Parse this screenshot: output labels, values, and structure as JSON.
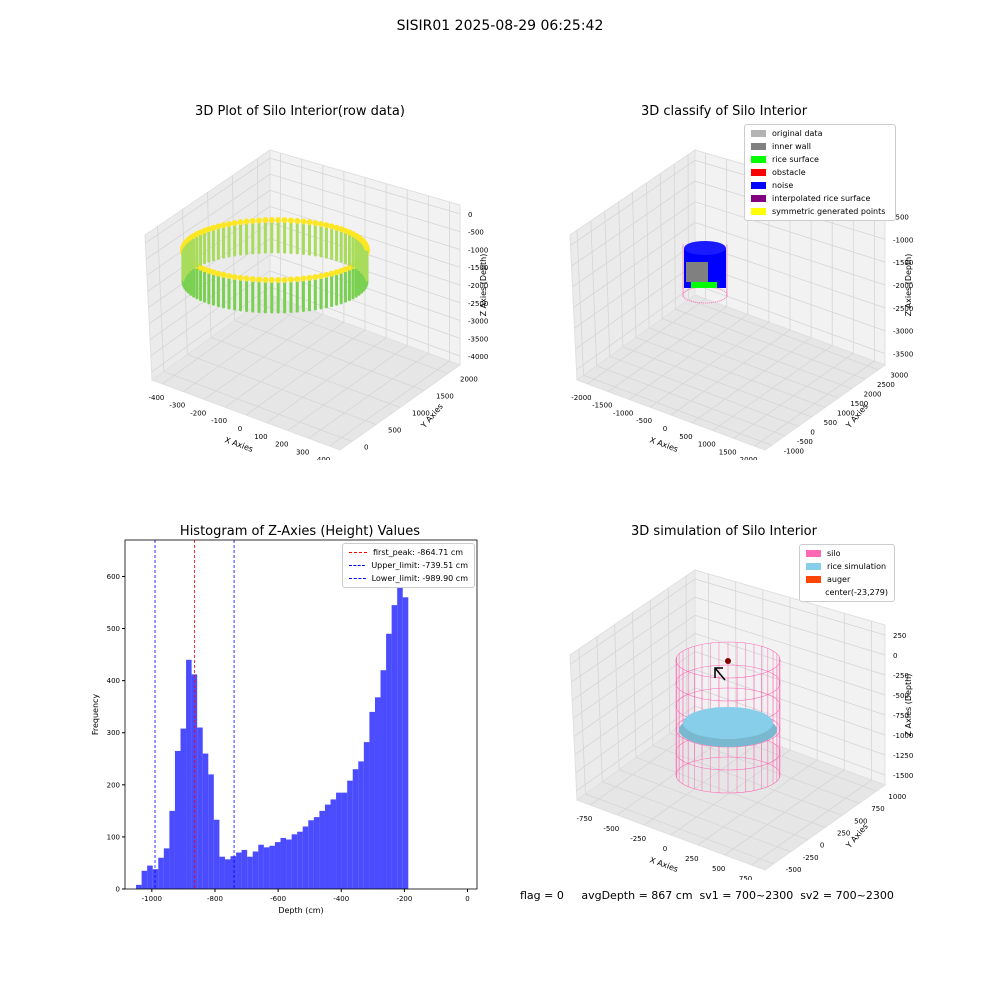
{
  "suptitle": "SISIR01 2025-08-29 06:25:42",
  "status_text": "flag = 0     avgDepth = 867 cm  sv1 = 700~2300  sv2 = 700~2300",
  "chart_data": [
    {
      "type": "scatter3d",
      "title": "3D Plot of Silo Interior(row data)",
      "xlabel": "X Axies",
      "ylabel": "Y Axies",
      "zlabel": "Z Axies (Depth)",
      "x_ticks": [
        "-400",
        "-300",
        "-200",
        "-100",
        "0",
        "100",
        "200",
        "300",
        "400"
      ],
      "y_ticks": [
        "0",
        "500",
        "1000",
        "1500",
        "2000"
      ],
      "z_ticks": [
        "0",
        "-500",
        "-1000",
        "-1500",
        "-2000",
        "-2500",
        "-3000",
        "-3500",
        "-4000"
      ],
      "colormap": [
        "#fde725",
        "#7ad151"
      ],
      "ring": {
        "x_range": [
          -400,
          400
        ],
        "z_range": [
          -900,
          -2100
        ]
      }
    },
    {
      "type": "scatter3d",
      "title": "3D classify of Silo Interior",
      "xlabel": "X Axies",
      "ylabel": "Y Axies",
      "zlabel": "Z Axies (Depth)",
      "x_ticks": [
        "-2000",
        "-1500",
        "-1000",
        "-500",
        "0",
        "500",
        "1000",
        "1500",
        "2000"
      ],
      "y_ticks": [
        "-1000",
        "-500",
        "0",
        "500",
        "1000",
        "1500",
        "2000",
        "2500",
        "3000"
      ],
      "z_ticks": [
        "-500",
        "-1000",
        "-1500",
        "-2000",
        "-2500",
        "-3000",
        "-3500"
      ],
      "legend": [
        {
          "label": "original data",
          "color": "#b3b3b3"
        },
        {
          "label": "inner wall",
          "color": "#808080"
        },
        {
          "label": "rice surface",
          "color": "#00ff00"
        },
        {
          "label": "obstacle",
          "color": "#ff0000"
        },
        {
          "label": "noise",
          "color": "#0000ff"
        },
        {
          "label": "interpolated rice surface",
          "color": "#800080"
        },
        {
          "label": "symmetric generated points",
          "color": "#ffff00"
        }
      ]
    },
    {
      "type": "bar",
      "title": "Histogram of Z-Axies (Height) Values",
      "xlabel": "Depth (cm)",
      "ylabel": "Frequency",
      "xlim": [
        -1085,
        30
      ],
      "ylim": [
        0,
        670
      ],
      "x_ticks": [
        "-1000",
        "-800",
        "-600",
        "-400",
        "-200",
        "0"
      ],
      "y_ticks": [
        "0",
        "100",
        "200",
        "300",
        "400",
        "500",
        "600"
      ],
      "bar_color": "#0000ff",
      "bin_start": -1050,
      "bin_width": 17.6,
      "values": [
        8,
        35,
        45,
        38,
        60,
        78,
        150,
        265,
        308,
        440,
        412,
        310,
        260,
        220,
        133,
        62,
        57,
        63,
        70,
        75,
        62,
        72,
        85,
        80,
        83,
        90,
        98,
        95,
        105,
        110,
        120,
        132,
        138,
        150,
        162,
        172,
        185,
        185,
        208,
        230,
        245,
        282,
        340,
        368,
        420,
        490,
        545,
        630,
        560
      ],
      "vlines": [
        {
          "label": "first_peak: -864.71 cm",
          "value": -864.71,
          "color": "#ff0000"
        },
        {
          "label": "Upper_limit: -739.51 cm",
          "value": -739.51,
          "color": "#0000ff"
        },
        {
          "label": "Lower_limit: -989.90 cm",
          "value": -989.9,
          "color": "#0000ff"
        }
      ]
    },
    {
      "type": "surface3d",
      "title": "3D simulation of Silo Interior",
      "xlabel": "X Axies",
      "ylabel": "Y Axies",
      "zlabel": "Z Axies (Depth)",
      "x_ticks": [
        "-750",
        "-500",
        "-250",
        "0",
        "250",
        "500",
        "750"
      ],
      "y_ticks": [
        "-500",
        "-250",
        "0",
        "250",
        "500",
        "750",
        "1000"
      ],
      "z_ticks": [
        "250",
        "0",
        "-250",
        "-500",
        "-750",
        "-1000",
        "-1250",
        "-1500"
      ],
      "legend": [
        {
          "label": "silo",
          "color": "#ff69b4"
        },
        {
          "label": "rice simulation",
          "color": "#87ceeb"
        },
        {
          "label": "auger",
          "color": "#ff4500"
        },
        {
          "label": "center(-23,279)",
          "color": ""
        }
      ]
    }
  ]
}
